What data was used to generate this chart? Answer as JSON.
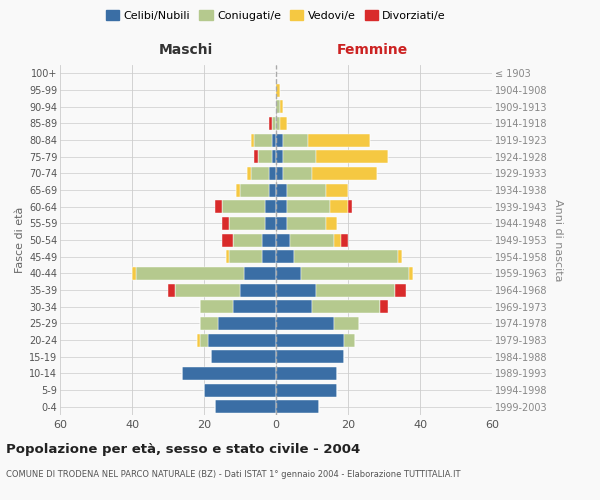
{
  "age_groups": [
    "0-4",
    "5-9",
    "10-14",
    "15-19",
    "20-24",
    "25-29",
    "30-34",
    "35-39",
    "40-44",
    "45-49",
    "50-54",
    "55-59",
    "60-64",
    "65-69",
    "70-74",
    "75-79",
    "80-84",
    "85-89",
    "90-94",
    "95-99",
    "100+"
  ],
  "birth_years": [
    "1999-2003",
    "1994-1998",
    "1989-1993",
    "1984-1988",
    "1979-1983",
    "1974-1978",
    "1969-1973",
    "1964-1968",
    "1959-1963",
    "1954-1958",
    "1949-1953",
    "1944-1948",
    "1939-1943",
    "1934-1938",
    "1929-1933",
    "1924-1928",
    "1919-1923",
    "1914-1918",
    "1909-1913",
    "1904-1908",
    "≤ 1903"
  ],
  "colors": {
    "celibi": "#3a6ea5",
    "coniugati": "#b5c98e",
    "vedovi": "#f5c842",
    "divorziati": "#d92b2b"
  },
  "maschi": {
    "celibi": [
      17,
      20,
      26,
      18,
      19,
      16,
      12,
      10,
      9,
      4,
      4,
      3,
      3,
      2,
      2,
      1,
      1,
      0,
      0,
      0,
      0
    ],
    "coniugati": [
      0,
      0,
      0,
      0,
      2,
      5,
      9,
      18,
      30,
      9,
      8,
      10,
      12,
      8,
      5,
      4,
      5,
      1,
      0,
      0,
      0
    ],
    "vedovi": [
      0,
      0,
      0,
      0,
      1,
      0,
      0,
      0,
      1,
      1,
      0,
      0,
      0,
      1,
      1,
      0,
      1,
      0,
      0,
      0,
      0
    ],
    "divorziati": [
      0,
      0,
      0,
      0,
      0,
      0,
      0,
      2,
      0,
      0,
      3,
      2,
      2,
      0,
      0,
      1,
      0,
      1,
      0,
      0,
      0
    ]
  },
  "femmine": {
    "celibi": [
      12,
      17,
      17,
      19,
      19,
      16,
      10,
      11,
      7,
      5,
      4,
      3,
      3,
      3,
      2,
      2,
      2,
      0,
      0,
      0,
      0
    ],
    "coniugati": [
      0,
      0,
      0,
      0,
      3,
      7,
      19,
      22,
      30,
      29,
      12,
      11,
      12,
      11,
      8,
      9,
      7,
      1,
      1,
      0,
      0
    ],
    "vedovi": [
      0,
      0,
      0,
      0,
      0,
      0,
      0,
      0,
      1,
      1,
      2,
      3,
      5,
      6,
      18,
      20,
      17,
      2,
      1,
      1,
      0
    ],
    "divorziati": [
      0,
      0,
      0,
      0,
      0,
      0,
      2,
      3,
      0,
      0,
      2,
      0,
      1,
      0,
      0,
      0,
      0,
      0,
      0,
      0,
      0
    ]
  },
  "title": "Popolazione per età, sesso e stato civile - 2004",
  "subtitle": "COMUNE DI TRODENA NEL PARCO NATURALE (BZ) - Dati ISTAT 1° gennaio 2004 - Elaborazione TUTTITALIA.IT",
  "xlabel_left": "Maschi",
  "xlabel_right": "Femmine",
  "ylabel_left": "Fasce di età",
  "ylabel_right": "Anni di nascita",
  "xlim": 60,
  "legend_labels": [
    "Celibi/Nubili",
    "Coniugati/e",
    "Vedovi/e",
    "Divorziati/e"
  ],
  "bg_color": "#f9f9f9",
  "grid_color": "#cccccc"
}
